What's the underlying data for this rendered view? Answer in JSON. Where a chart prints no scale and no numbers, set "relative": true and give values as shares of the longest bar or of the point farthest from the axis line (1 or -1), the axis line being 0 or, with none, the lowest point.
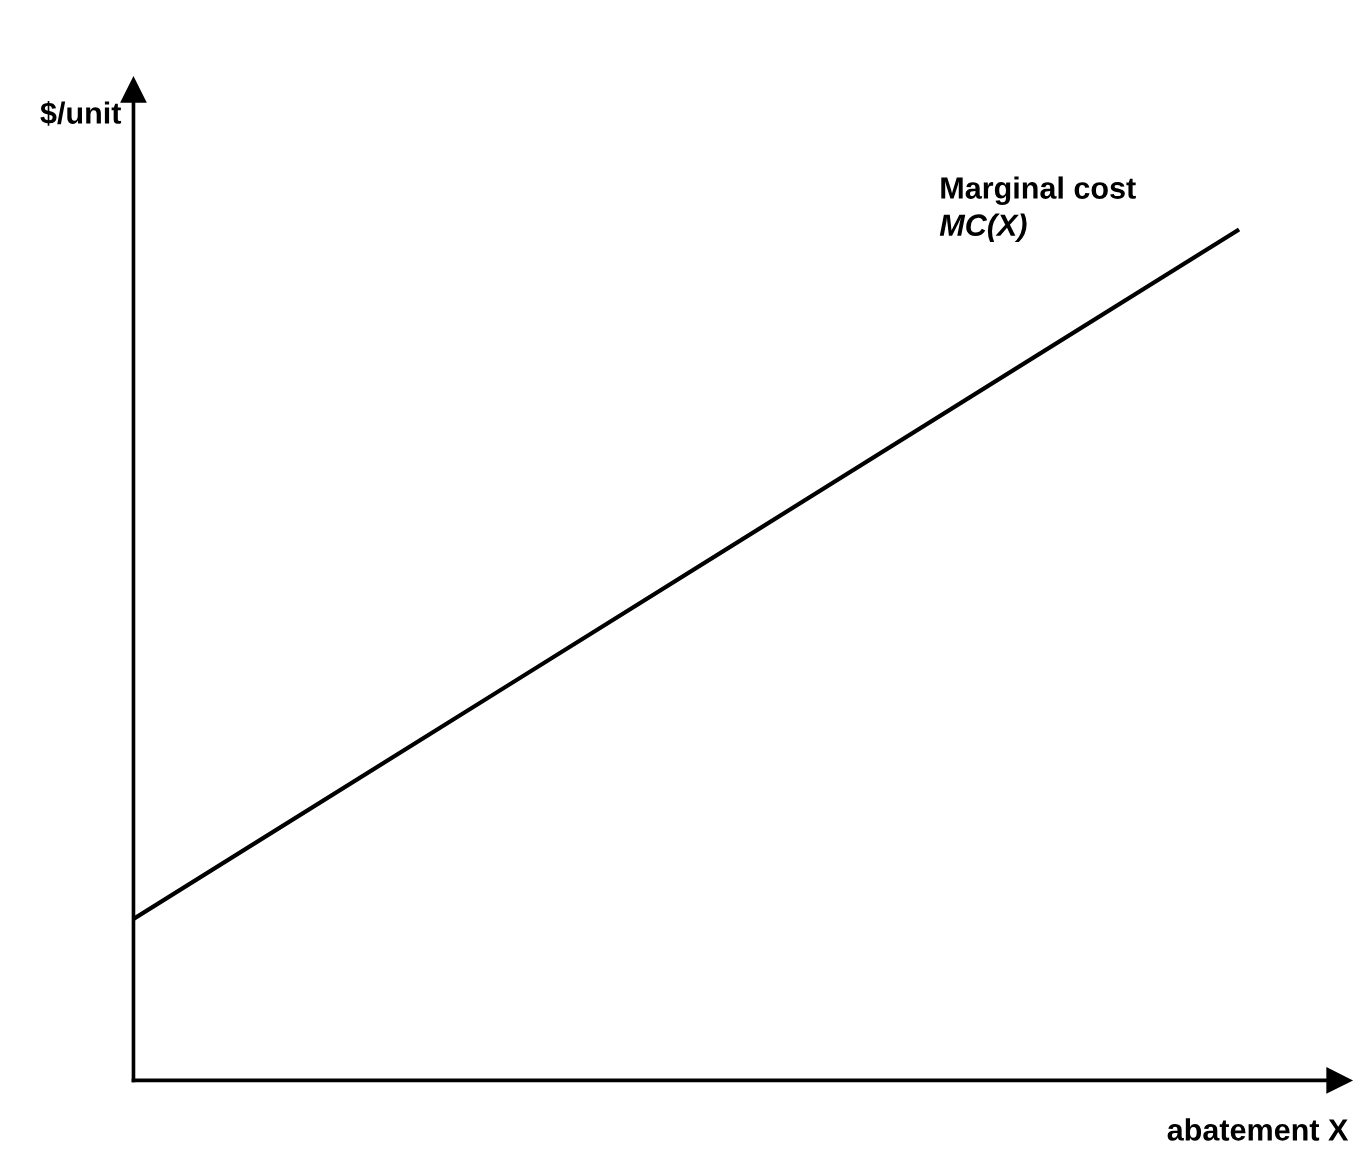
{
  "chart_data": {
    "type": "line",
    "relative": true,
    "xlabel": "abatement X",
    "ylabel": "$/unit",
    "categories": [
      null,
      null
    ],
    "series": [
      {
        "name": "Marginal cost",
        "color": "#000000",
        "values": [
          0.19,
          1
        ]
      }
    ],
    "annotations": [
      "MC(X)"
    ],
    "grid": false,
    "legend": false,
    "marker": "none",
    "line_style": "solid"
  }
}
